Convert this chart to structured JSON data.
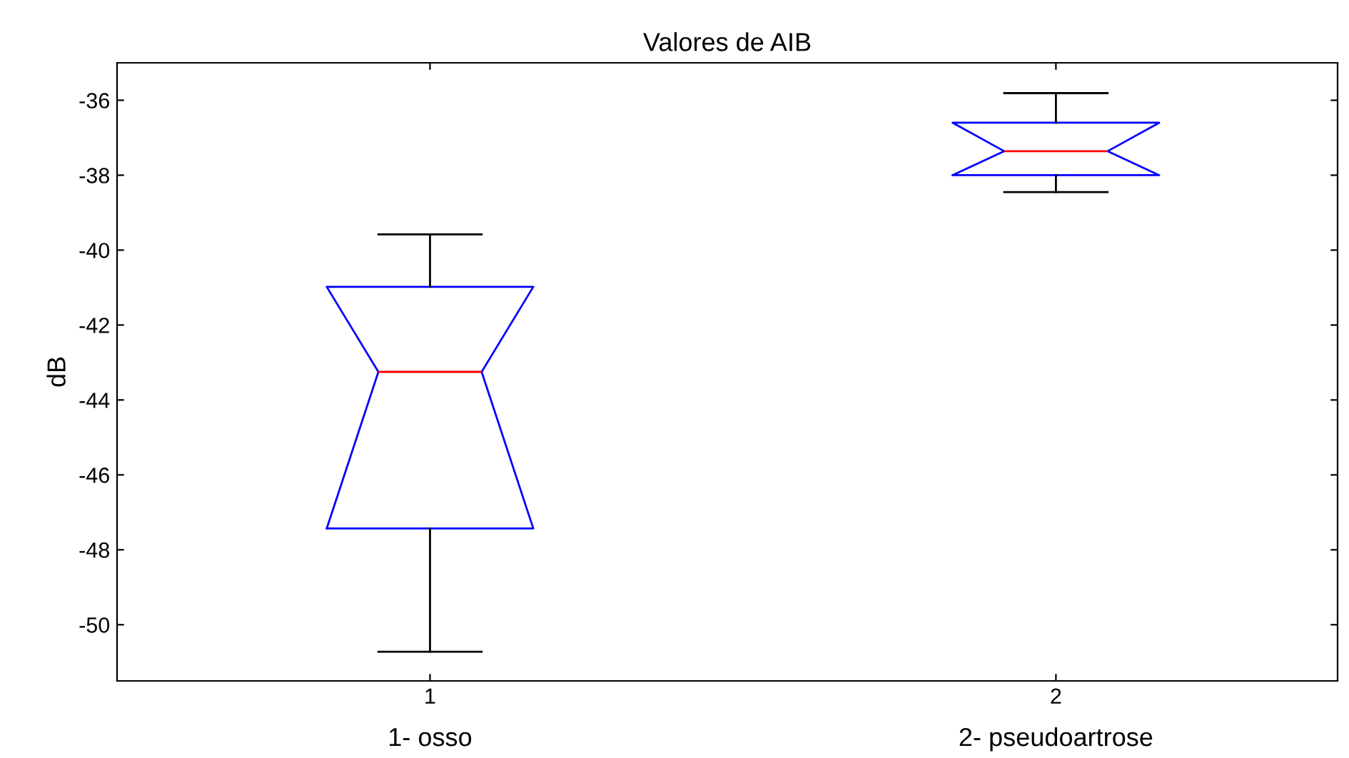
{
  "chart_data": {
    "type": "box",
    "title": "Valores de AIB",
    "ylabel": "dB",
    "categories": [
      "1",
      "2"
    ],
    "annotations": [
      "1- osso",
      "2- pseudoartrose"
    ],
    "boxes": [
      {
        "low": -50.72,
        "q1": -47.43,
        "median": -43.25,
        "q3": -40.98,
        "high": -39.58
      },
      {
        "low": -38.45,
        "q1": -38.0,
        "median": -37.36,
        "q3": -36.6,
        "high": -35.81
      }
    ],
    "color": "#0000ff",
    "ylim": [
      -51.5,
      -35
    ],
    "yticks": [
      -50,
      -48,
      -46,
      -44,
      -42,
      -40,
      -38,
      -36
    ],
    "grid": false,
    "legend": false
  }
}
